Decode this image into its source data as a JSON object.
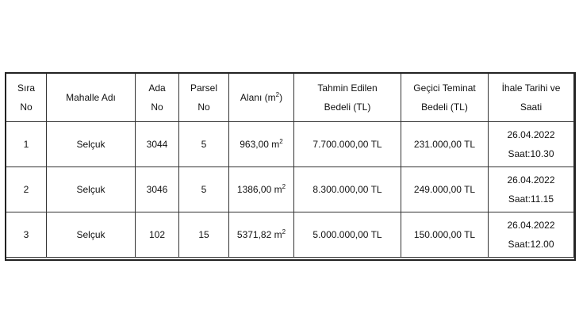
{
  "headers": [
    {
      "l1": "Sıra",
      "l2": "No"
    },
    {
      "l1": "Mahalle Adı",
      "l2": ""
    },
    {
      "l1": "Ada",
      "l2": "No"
    },
    {
      "l1": "Parsel",
      "l2": "No"
    },
    {
      "l1": "Alanı (m",
      "sup": "2",
      "l3": ")"
    },
    {
      "l1": "Tahmin Edilen",
      "l2": "Bedeli (TL)"
    },
    {
      "l1": "Geçici Teminat",
      "l2": "Bedeli (TL)"
    },
    {
      "l1": "İhale Tarihi ve",
      "l2": "Saati"
    }
  ],
  "rows": [
    {
      "sira": "1",
      "mahalle": "Selçuk",
      "ada": "3044",
      "parsel": "5",
      "alan": "963,00 m",
      "alan_sup": "2",
      "tahmin": "7.700.000,00 TL",
      "teminat": "231.000,00 TL",
      "tarih": "26.04.2022",
      "saat": "Saat:10.30"
    },
    {
      "sira": "2",
      "mahalle": "Selçuk",
      "ada": "3046",
      "parsel": "5",
      "alan": "1386,00 m",
      "alan_sup": "2",
      "tahmin": "8.300.000,00 TL",
      "teminat": "249.000,00 TL",
      "tarih": "26.04.2022",
      "saat": "Saat:11.15"
    },
    {
      "sira": "3",
      "mahalle": "Selçuk",
      "ada": "102",
      "parsel": "15",
      "alan": "5371,82 m",
      "alan_sup": "2",
      "tahmin": "5.000.000,00 TL",
      "teminat": "150.000,00 TL",
      "tarih": "26.04.2022",
      "saat": "Saat:12.00"
    }
  ]
}
